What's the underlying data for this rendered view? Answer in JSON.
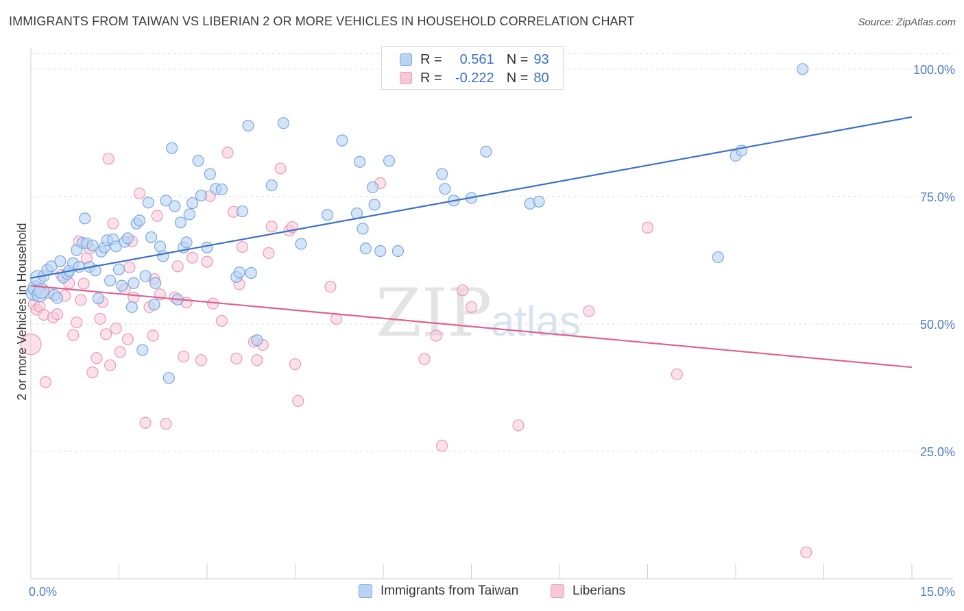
{
  "title": "IMMIGRANTS FROM TAIWAN VS LIBERIAN 2 OR MORE VEHICLES IN HOUSEHOLD CORRELATION CHART",
  "source": "Source: ZipAtlas.com",
  "watermark": {
    "zip": "ZIP",
    "atlas": "atlas"
  },
  "colors": {
    "blue": "#3a70c9",
    "blue_fill": "#b9d3f3",
    "pink": "#e0608e",
    "pink_fill": "#f9c8d8",
    "grid": "#dddddd",
    "tick_label": "#4a7cc7"
  },
  "stats": [
    {
      "r_label": "R =",
      "r": "0.561",
      "n_label": "N =",
      "n": "93"
    },
    {
      "r_label": "R =",
      "r": "-0.222",
      "n_label": "N =",
      "n": "80"
    }
  ],
  "chart_data": {
    "type": "scatter",
    "title": "IMMIGRANTS FROM TAIWAN VS LIBERIAN 2 OR MORE VEHICLES IN HOUSEHOLD CORRELATION CHART",
    "xlabel": "",
    "ylabel": "2 or more Vehicles in Household",
    "xlim": [
      0,
      15
    ],
    "ylim": [
      0,
      103
    ],
    "x_tick_labels": [
      "0.0%",
      "15.0%"
    ],
    "y_ticks": [
      25,
      50,
      75,
      100
    ],
    "y_tick_labels": [
      "25.0%",
      "50.0%",
      "75.0%",
      "100.0%"
    ],
    "grid": true,
    "legend_position": "bottom",
    "series": [
      {
        "name": "Immigrants from Taiwan",
        "color": "#3a70c9",
        "trend": [
          [
            0,
            59.0
          ],
          [
            15,
            90.6
          ]
        ],
        "points": [
          [
            0.05,
            56.1
          ],
          [
            0.08,
            57.0
          ],
          [
            0.12,
            59.0
          ],
          [
            0.15,
            55.8
          ],
          [
            0.18,
            56.5
          ],
          [
            0.22,
            59.4
          ],
          [
            0.28,
            60.6
          ],
          [
            0.35,
            61.3
          ],
          [
            0.4,
            55.7
          ],
          [
            0.45,
            55.1
          ],
          [
            0.5,
            62.3
          ],
          [
            0.55,
            59.1
          ],
          [
            0.62,
            59.8
          ],
          [
            0.65,
            60.4
          ],
          [
            0.72,
            61.9
          ],
          [
            0.78,
            64.5
          ],
          [
            0.82,
            61.2
          ],
          [
            0.88,
            65.9
          ],
          [
            0.92,
            70.7
          ],
          [
            0.95,
            65.8
          ],
          [
            1.0,
            61.2
          ],
          [
            1.05,
            65.4
          ],
          [
            1.1,
            60.5
          ],
          [
            1.15,
            55.0
          ],
          [
            1.2,
            64.2
          ],
          [
            1.25,
            65.0
          ],
          [
            1.3,
            66.4
          ],
          [
            1.35,
            58.5
          ],
          [
            1.4,
            66.6
          ],
          [
            1.45,
            65.2
          ],
          [
            1.5,
            60.7
          ],
          [
            1.55,
            57.5
          ],
          [
            1.6,
            66.1
          ],
          [
            1.65,
            66.8
          ],
          [
            1.72,
            53.3
          ],
          [
            1.75,
            58.0
          ],
          [
            1.8,
            69.7
          ],
          [
            1.85,
            70.3
          ],
          [
            1.9,
            44.9
          ],
          [
            1.95,
            59.4
          ],
          [
            2.0,
            73.8
          ],
          [
            2.05,
            67.0
          ],
          [
            2.1,
            53.8
          ],
          [
            2.12,
            58.0
          ],
          [
            2.2,
            65.2
          ],
          [
            2.25,
            63.3
          ],
          [
            2.3,
            74.2
          ],
          [
            2.35,
            39.4
          ],
          [
            2.4,
            84.5
          ],
          [
            2.45,
            73.1
          ],
          [
            2.5,
            54.8
          ],
          [
            2.55,
            69.9
          ],
          [
            2.6,
            65.0
          ],
          [
            2.65,
            66.0
          ],
          [
            2.7,
            71.5
          ],
          [
            2.75,
            73.7
          ],
          [
            2.85,
            82.0
          ],
          [
            2.9,
            75.2
          ],
          [
            3.0,
            65.0
          ],
          [
            3.05,
            79.4
          ],
          [
            3.15,
            76.5
          ],
          [
            3.25,
            76.4
          ],
          [
            3.5,
            59.2
          ],
          [
            3.55,
            60.1
          ],
          [
            3.6,
            72.1
          ],
          [
            3.7,
            88.9
          ],
          [
            3.75,
            60.0
          ],
          [
            3.85,
            46.8
          ],
          [
            4.1,
            77.2
          ],
          [
            4.3,
            89.4
          ],
          [
            4.6,
            65.7
          ],
          [
            5.05,
            71.4
          ],
          [
            5.3,
            86.0
          ],
          [
            5.55,
            71.7
          ],
          [
            5.6,
            81.8
          ],
          [
            5.65,
            68.7
          ],
          [
            5.7,
            64.8
          ],
          [
            5.82,
            76.8
          ],
          [
            5.85,
            73.4
          ],
          [
            5.95,
            64.3
          ],
          [
            6.1,
            82.0
          ],
          [
            6.25,
            64.3
          ],
          [
            7.0,
            79.4
          ],
          [
            7.05,
            76.5
          ],
          [
            7.2,
            74.2
          ],
          [
            7.5,
            74.7
          ],
          [
            7.75,
            83.8
          ],
          [
            8.5,
            73.6
          ],
          [
            8.65,
            74.0
          ],
          [
            11.7,
            63.1
          ],
          [
            12.0,
            83.0
          ],
          [
            12.1,
            84.0
          ],
          [
            13.14,
            100.0
          ]
        ]
      },
      {
        "name": "Liberians",
        "color": "#e0608e",
        "trend": [
          [
            0,
            57.5
          ],
          [
            15,
            41.5
          ]
        ],
        "points": [
          [
            0.0,
            46.0
          ],
          [
            0.05,
            53.9
          ],
          [
            0.1,
            52.8
          ],
          [
            0.15,
            53.4
          ],
          [
            0.22,
            51.8
          ],
          [
            0.25,
            38.6
          ],
          [
            0.3,
            56.1
          ],
          [
            0.38,
            51.3
          ],
          [
            0.45,
            51.9
          ],
          [
            0.52,
            59.6
          ],
          [
            0.58,
            55.5
          ],
          [
            0.65,
            58.0
          ],
          [
            0.72,
            47.8
          ],
          [
            0.78,
            50.3
          ],
          [
            0.82,
            66.2
          ],
          [
            0.85,
            54.7
          ],
          [
            0.9,
            57.9
          ],
          [
            0.95,
            62.9
          ],
          [
            1.0,
            64.8
          ],
          [
            1.05,
            40.5
          ],
          [
            1.12,
            43.3
          ],
          [
            1.18,
            51.0
          ],
          [
            1.22,
            54.3
          ],
          [
            1.28,
            48.0
          ],
          [
            1.32,
            82.4
          ],
          [
            1.35,
            41.9
          ],
          [
            1.4,
            69.7
          ],
          [
            1.45,
            49.1
          ],
          [
            1.52,
            44.5
          ],
          [
            1.6,
            56.8
          ],
          [
            1.65,
            47.0
          ],
          [
            1.68,
            61.1
          ],
          [
            1.72,
            66.2
          ],
          [
            1.75,
            55.2
          ],
          [
            1.85,
            75.6
          ],
          [
            1.95,
            30.6
          ],
          [
            2.02,
            53.3
          ],
          [
            2.08,
            47.7
          ],
          [
            2.1,
            58.8
          ],
          [
            2.15,
            71.2
          ],
          [
            2.2,
            55.8
          ],
          [
            2.3,
            30.4
          ],
          [
            2.45,
            55.2
          ],
          [
            2.5,
            61.3
          ],
          [
            2.6,
            43.6
          ],
          [
            2.65,
            54.2
          ],
          [
            2.75,
            63.0
          ],
          [
            2.9,
            42.9
          ],
          [
            3.0,
            62.2
          ],
          [
            3.05,
            75.1
          ],
          [
            3.1,
            54.0
          ],
          [
            3.25,
            50.6
          ],
          [
            3.35,
            83.6
          ],
          [
            3.45,
            72.0
          ],
          [
            3.5,
            43.2
          ],
          [
            3.55,
            57.8
          ],
          [
            3.6,
            65.1
          ],
          [
            3.8,
            46.5
          ],
          [
            3.85,
            42.9
          ],
          [
            3.95,
            45.9
          ],
          [
            4.05,
            63.9
          ],
          [
            4.1,
            69.1
          ],
          [
            4.25,
            80.5
          ],
          [
            4.4,
            68.3
          ],
          [
            4.5,
            42.1
          ],
          [
            4.55,
            34.9
          ],
          [
            5.1,
            57.3
          ],
          [
            5.2,
            51.0
          ],
          [
            5.95,
            77.6
          ],
          [
            6.7,
            43.1
          ],
          [
            6.9,
            47.7
          ],
          [
            7.0,
            26.1
          ],
          [
            7.35,
            56.6
          ],
          [
            7.5,
            53.3
          ],
          [
            8.3,
            30.1
          ],
          [
            9.5,
            52.5
          ],
          [
            10.5,
            68.9
          ],
          [
            11.0,
            40.1
          ],
          [
            13.2,
            5.2
          ],
          [
            4.45,
            69.0
          ]
        ]
      }
    ]
  }
}
